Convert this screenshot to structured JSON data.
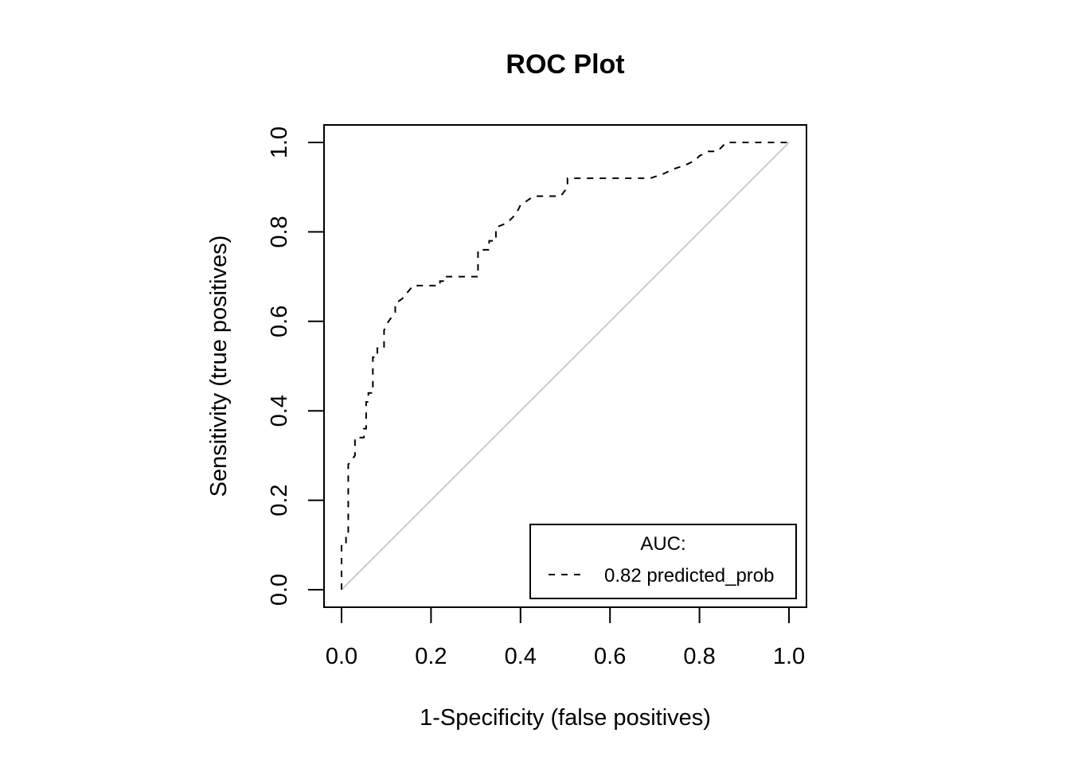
{
  "chart_data": {
    "type": "line",
    "title": "ROC Plot",
    "xlabel": "1-Specificity (false positives)",
    "ylabel": "Sensitivity (true positives)",
    "xlim": [
      0,
      1
    ],
    "ylim": [
      0,
      1
    ],
    "x_ticks": [
      "0.0",
      "0.2",
      "0.4",
      "0.6",
      "0.8",
      "1.0"
    ],
    "y_ticks": [
      "0.0",
      "0.2",
      "0.4",
      "0.6",
      "0.8",
      "1.0"
    ],
    "grid": false,
    "legend": {
      "placement": "bottom-right",
      "title": "AUC:",
      "entry": "0.82 predicted_prob"
    },
    "reference_line": {
      "x": [
        0,
        1
      ],
      "y": [
        0,
        1
      ],
      "color": "#cccccc"
    },
    "series": [
      {
        "line_style": "dashed",
        "color": "#000000",
        "x": [
          0.0,
          0.0,
          0.01,
          0.01,
          0.015,
          0.015,
          0.03,
          0.03,
          0.05,
          0.05,
          0.055,
          0.055,
          0.06,
          0.06,
          0.07,
          0.07,
          0.08,
          0.08,
          0.095,
          0.095,
          0.105,
          0.12,
          0.12,
          0.135,
          0.16,
          0.16,
          0.22,
          0.22,
          0.235,
          0.235,
          0.305,
          0.305,
          0.33,
          0.33,
          0.345,
          0.345,
          0.37,
          0.37,
          0.39,
          0.4,
          0.43,
          0.49,
          0.505,
          0.505,
          0.69,
          0.72,
          0.74,
          0.77,
          0.79,
          0.8,
          0.82,
          0.835,
          0.84,
          0.85,
          0.86,
          0.9,
          1.0
        ],
        "y": [
          0.0,
          0.1,
          0.1,
          0.12,
          0.12,
          0.28,
          0.3,
          0.34,
          0.34,
          0.36,
          0.36,
          0.42,
          0.42,
          0.44,
          0.44,
          0.52,
          0.52,
          0.54,
          0.54,
          0.58,
          0.6,
          0.62,
          0.64,
          0.65,
          0.68,
          0.68,
          0.68,
          0.69,
          0.69,
          0.7,
          0.7,
          0.76,
          0.76,
          0.78,
          0.78,
          0.81,
          0.82,
          0.82,
          0.84,
          0.86,
          0.88,
          0.88,
          0.9,
          0.92,
          0.92,
          0.93,
          0.94,
          0.95,
          0.96,
          0.97,
          0.98,
          0.98,
          0.98,
          0.99,
          1.0,
          1.0,
          1.0
        ]
      }
    ]
  }
}
